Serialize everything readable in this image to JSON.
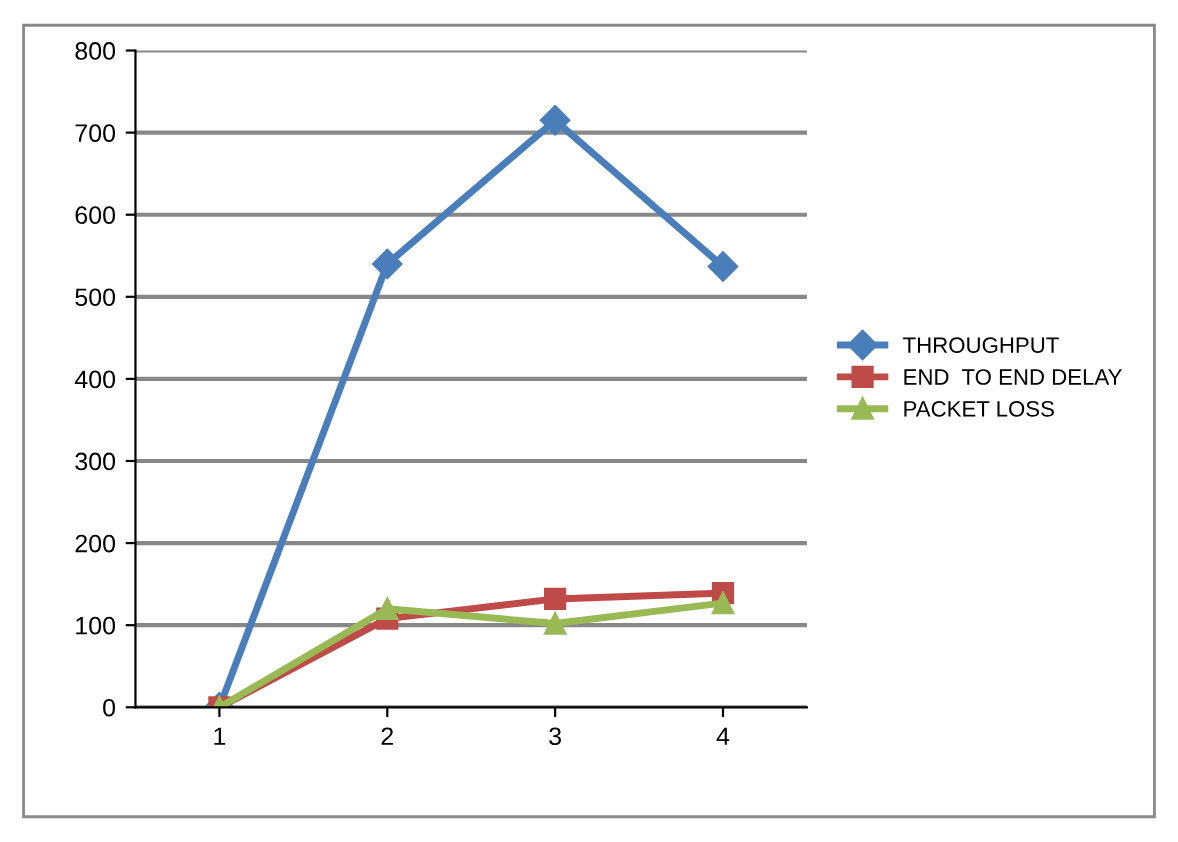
{
  "chart_data": {
    "type": "line",
    "categories": [
      "1",
      "2",
      "3",
      "4"
    ],
    "series": [
      {
        "name": "THROUGHPUT",
        "color": "#4a7ebb",
        "marker": "diamond",
        "values": [
          0,
          540,
          715,
          537
        ]
      },
      {
        "name": "END  TO END DELAY",
        "color": "#be4b48",
        "marker": "square",
        "values": [
          0,
          108,
          132,
          139
        ]
      },
      {
        "name": "PACKET LOSS",
        "color": "#98b954",
        "marker": "triangle",
        "values": [
          0,
          120,
          102,
          127
        ]
      }
    ],
    "ylim": [
      0,
      800
    ],
    "yticks": [
      0,
      100,
      200,
      300,
      400,
      500,
      600,
      700,
      800
    ],
    "grid": "y",
    "legend": "right",
    "line_style": "solid"
  }
}
